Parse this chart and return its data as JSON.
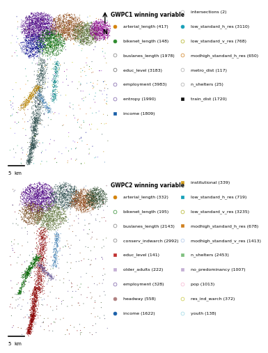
{
  "panel1_title": "GWPC1 winning variable",
  "panel1_legend_left": [
    {
      "label": "arterial_length (417)",
      "color": "#d4820a",
      "marker": "o",
      "filled": true
    },
    {
      "label": "bikenet_length (148)",
      "color": "#2e8b2e",
      "marker": "o",
      "filled": true
    },
    {
      "label": "buslanes_length (1978)",
      "color": "#808080",
      "marker": "o",
      "filled": false
    },
    {
      "label": "educ_level (3183)",
      "color": "#606060",
      "marker": "o",
      "filled": false
    },
    {
      "label": "employment (3983)",
      "color": "#7b5ea7",
      "marker": "o",
      "filled": false
    },
    {
      "label": "entropy (1990)",
      "color": "#7b5ea7",
      "marker": "o",
      "filled": false
    },
    {
      "label": "income (1809)",
      "color": "#1a5fa8",
      "marker": "s",
      "filled": true
    }
  ],
  "panel1_legend_right": [
    {
      "label": "intersections (2)",
      "color": "#aaaaaa",
      "marker": "o",
      "filled": false
    },
    {
      "label": "low_standard_h_res (3110)",
      "color": "#17a0b8",
      "marker": "o",
      "filled": true
    },
    {
      "label": "low_standard_v_res (768)",
      "color": "#b0b020",
      "marker": "o",
      "filled": false
    },
    {
      "label": "modhigh_standard_h_res (650)",
      "color": "#d08020",
      "marker": "o",
      "filled": false
    },
    {
      "label": "metro_dist (117)",
      "color": "#aaaaaa",
      "marker": "o",
      "filled": false
    },
    {
      "label": "n_shelters (25)",
      "color": "#aaaaaa",
      "marker": "o",
      "filled": false
    },
    {
      "label": "train_dist (1720)",
      "color": "#111111",
      "marker": "s",
      "filled": true
    }
  ],
  "panel2_title": "GWPC2 winning variable",
  "panel2_legend_left": [
    {
      "label": "arterial_length (332)",
      "color": "#d4820a",
      "marker": "o",
      "filled": true
    },
    {
      "label": "bikenet_length (195)",
      "color": "#2e8b2e",
      "marker": "o",
      "filled": false
    },
    {
      "label": "buslanes_length (2143)",
      "color": "#808080",
      "marker": "o",
      "filled": false
    },
    {
      "label": "conserv_indwarch (2992)",
      "color": "#808080",
      "marker": "o",
      "filled": false
    },
    {
      "label": "educ_level (141)",
      "color": "#c03030",
      "marker": "s",
      "filled": true
    },
    {
      "label": "older_adults (222)",
      "color": "#c5b0d5",
      "marker": "s",
      "filled": true
    },
    {
      "label": "employment (328)",
      "color": "#7b5ea7",
      "marker": "o",
      "filled": false
    },
    {
      "label": "headway (558)",
      "color": "#b08080",
      "marker": "o",
      "filled": true
    },
    {
      "label": "income (1622)",
      "color": "#1a5fa8",
      "marker": "o",
      "filled": true
    }
  ],
  "panel2_legend_right": [
    {
      "label": "institutional (339)",
      "color": "#d4a020",
      "marker": "s",
      "filled": true
    },
    {
      "label": "low_standard_h_res (719)",
      "color": "#17a0b8",
      "marker": "s",
      "filled": true
    },
    {
      "label": "low_standard_v_res (3235)",
      "color": "#b0b020",
      "marker": "o",
      "filled": false
    },
    {
      "label": "modhigh_standard_h_res (678)",
      "color": "#d08020",
      "marker": "s",
      "filled": true
    },
    {
      "label": "modhigh_standard_v_res (1413)",
      "color": "#aec7e8",
      "marker": "o",
      "filled": false
    },
    {
      "label": "n_shelters (2453)",
      "color": "#80c080",
      "marker": "s",
      "filled": true
    },
    {
      "label": "no_predominancy (1007)",
      "color": "#c5b0d5",
      "marker": "s",
      "filled": true
    },
    {
      "label": "pop (1013)",
      "color": "#f7b6d2",
      "marker": "o",
      "filled": false
    },
    {
      "label": "res_ind_warch (372)",
      "color": "#c8c840",
      "marker": "o",
      "filled": false
    },
    {
      "label": "youth (138)",
      "color": "#9edae5",
      "marker": "o",
      "filled": false
    }
  ],
  "map1_colors": [
    "#4b0082",
    "#006400",
    "#8b4513",
    "#00008b",
    "#556b2f",
    "#2f4f4f",
    "#8b008b",
    "#b8860b",
    "#008080",
    "#4682b4",
    "#9acd32",
    "#d2691e",
    "#20b2aa",
    "#7b68ee",
    "#c0c000",
    "#3cb371",
    "#9932cc",
    "#ff8c00",
    "#008b8b",
    "#6a5acd"
  ],
  "map2_colors": [
    "#4b0082",
    "#556b2f",
    "#8b0000",
    "#2f4f4f",
    "#704214",
    "#5f4f8f",
    "#8b4513",
    "#006400",
    "#4682b4",
    "#2e4b2e",
    "#800020",
    "#3b5323",
    "#5b2333",
    "#4a4a8a",
    "#704214",
    "#3b3b5b",
    "#8b4513",
    "#2f4f4f",
    "#5f3f2f",
    "#4b3b6b"
  ]
}
